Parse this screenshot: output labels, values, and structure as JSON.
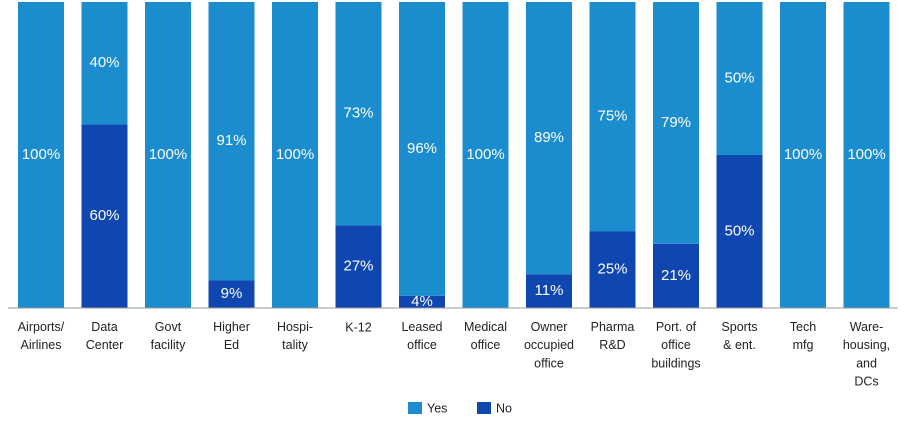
{
  "chart_data": {
    "type": "stacked_bar",
    "categories": [
      "Airports/\nAirlines",
      "Data\nCenter",
      "Govt\nfacility",
      "Higher\nEd",
      "Hospi-\ntality",
      "K-12",
      "Leased\noffice",
      "Medical\noffice",
      "Owner\noccupied\noffice",
      "Pharma\nR&D",
      "Port. of\noffice\nbuildings",
      "Sports\n& ent.",
      "Tech\nmfg",
      "Ware-\nhousing,\nand\nDCs"
    ],
    "series": [
      {
        "name": "Yes",
        "color": "#1b8dcf",
        "values": [
          100,
          40,
          100,
          91,
          100,
          73,
          96,
          100,
          89,
          75,
          79,
          50,
          100,
          100
        ],
        "value_labels": [
          "100%",
          "40%",
          "100%",
          "91%",
          "100%",
          "73%",
          "96%",
          "100%",
          "89%",
          "75%",
          "79%",
          "50%",
          "100%",
          "100%"
        ]
      },
      {
        "name": "No",
        "color": "#0f46b0",
        "values": [
          0,
          60,
          0,
          9,
          0,
          27,
          4,
          0,
          11,
          25,
          21,
          50,
          0,
          0
        ],
        "value_labels": [
          null,
          "60%",
          null,
          "9%",
          null,
          "27%",
          "4%",
          null,
          "11%",
          "25%",
          "21%",
          "50%",
          null,
          null
        ]
      }
    ],
    "ylim": [
      0,
      100
    ],
    "legend": "bottom"
  }
}
